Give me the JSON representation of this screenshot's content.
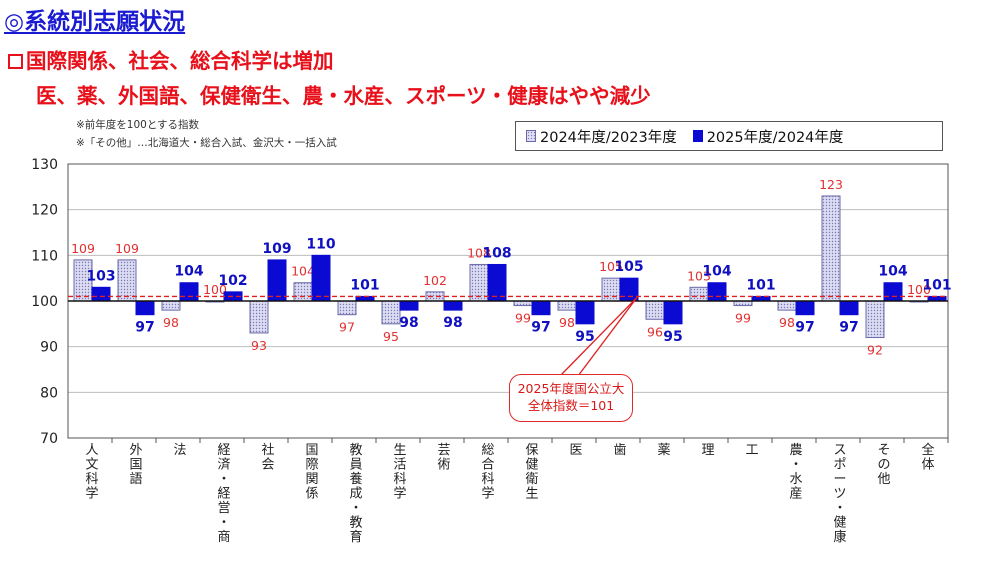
{
  "title": "◎系統別志願状況",
  "subtitles": [
    "国際関係、社会、総合科学は増加",
    "医、薬、外国語、保健衛生、農・水産、スポーツ・健康はやや減少"
  ],
  "notes": [
    "※前年度を100とする指数",
    "※「その他」…北海道大・総合入試、金沢大・一括入試"
  ],
  "callout": {
    "line1": "2025年度国公立大",
    "line2": "全体指数＝101"
  },
  "colors": {
    "series_2024": "#dcdcf2",
    "series_2025": "#0a0ad2",
    "label_2024": "#e03030",
    "label_2025": "#1010c0",
    "reference_line": "#e02020",
    "title": "#1a1ad2",
    "subtitle": "#e8101a"
  },
  "chart_data": {
    "type": "bar",
    "categories": [
      "人文科学",
      "外国語",
      "法",
      "経済・経営・商",
      "社会",
      "国際関係",
      "教員養成・教育",
      "生活科学",
      "芸術",
      "総合科学",
      "保健衛生",
      "医",
      "歯",
      "薬",
      "理",
      "工",
      "農・水産",
      "スポーツ・健康",
      "その他",
      "全体"
    ],
    "series": [
      {
        "name": "2024年度/2023年度",
        "values": [
          109,
          109,
          98,
          100,
          93,
          104,
          97,
          95,
          102,
          108,
          99,
          98,
          105,
          96,
          103,
          99,
          98,
          123,
          92,
          100
        ]
      },
      {
        "name": "2025年度/2024年度",
        "values": [
          103,
          97,
          104,
          102,
          109,
          110,
          101,
          98,
          98,
          108,
          97,
          95,
          105,
          95,
          104,
          101,
          97,
          97,
          104,
          101
        ]
      }
    ],
    "baseline": 100,
    "reference_line": 101,
    "ylim": [
      70,
      130
    ],
    "yticks": [
      70,
      80,
      90,
      100,
      110,
      120,
      130
    ],
    "grid": true,
    "legend_position": "top-right"
  }
}
